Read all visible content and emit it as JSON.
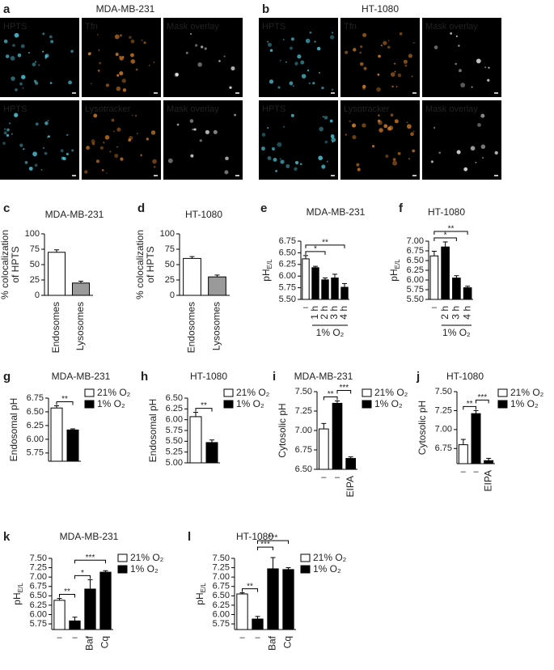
{
  "figure": {
    "panels": [
      {
        "label": "a",
        "title": "MDA-MB-231",
        "images": [
          "HPTS",
          "Tfn",
          "Mask overlay",
          "HPTS",
          "Lysotracker",
          "Mask overlay"
        ]
      },
      {
        "label": "b",
        "title": "HT-1080",
        "images": [
          "HPTS",
          "Tfn",
          "Mask overlay",
          "HPTS",
          "Lysotracker",
          "Mask overlay"
        ]
      }
    ]
  },
  "chart_data": [
    {
      "type": "bar",
      "panel": "c",
      "title": "MDA-MB-231",
      "ylabel": [
        "% colocalization",
        "of HPTS"
      ],
      "categories": [
        "Endosomes",
        "Lysosomes"
      ],
      "values": [
        70,
        20
      ],
      "errors": [
        4,
        3
      ],
      "colors": [
        "#ffffff",
        "#9a9a9a"
      ],
      "ylim": [
        0,
        100
      ],
      "yticks": [
        0,
        25,
        50,
        75,
        100
      ]
    },
    {
      "type": "bar",
      "panel": "d",
      "title": "HT-1080",
      "ylabel": [
        "% colocalization",
        "of HPTS"
      ],
      "categories": [
        "Endosomes",
        "Lysosomes"
      ],
      "values": [
        60,
        30
      ],
      "errors": [
        3,
        3
      ],
      "colors": [
        "#ffffff",
        "#9a9a9a"
      ],
      "ylim": [
        0,
        100
      ],
      "yticks": [
        0,
        25,
        50,
        75,
        100
      ]
    },
    {
      "type": "bar",
      "panel": "e",
      "title": "MDA-MB-231",
      "ylabel": [
        "pH"
      ],
      "ylabel_sub": "E/L",
      "categories": [
        "–",
        "1 h",
        "2 h",
        "3 h",
        "4 h"
      ],
      "values": [
        6.37,
        6.18,
        5.92,
        5.96,
        5.76
      ],
      "errors": [
        0.07,
        0.03,
        0.04,
        0.08,
        0.08
      ],
      "colors": [
        "#ffffff",
        "#000000",
        "#000000",
        "#000000",
        "#000000"
      ],
      "group_label": "1% O₂",
      "annotations": [
        "**",
        "*"
      ],
      "ylim": [
        5.5,
        6.75
      ],
      "yticks": [
        {
          "value": 5.5,
          "label": "5.50"
        },
        5.75,
        {
          "value": 6,
          "label": "6.00"
        },
        6.25,
        {
          "value": 6.5,
          "label": "6.50"
        },
        6.75
      ]
    },
    {
      "type": "bar",
      "panel": "f",
      "title": "HT-1080",
      "ylabel": [
        "pH"
      ],
      "ylabel_sub": "E/L",
      "categories": [
        "–",
        "2 h",
        "3 h",
        "4 h"
      ],
      "values": [
        6.62,
        6.85,
        6.05,
        5.8
      ],
      "errors": [
        0.12,
        0.13,
        0.06,
        0.04
      ],
      "colors": [
        "#ffffff",
        "#000000",
        "#000000",
        "#000000"
      ],
      "group_label": "1% O₂",
      "annotations": [
        "*",
        "**"
      ],
      "ylim": [
        5.5,
        7.0
      ],
      "yticks": [
        {
          "value": 5.5,
          "label": "5.50"
        },
        5.75,
        {
          "value": 6,
          "label": "6.00"
        },
        6.25,
        {
          "value": 6.5,
          "label": "6.50"
        },
        6.75,
        {
          "value": 7,
          "label": "7.00"
        }
      ]
    },
    {
      "type": "bar",
      "panel": "g",
      "title": "MDA-MB-231",
      "ylabel": [
        "Endosomal pH"
      ],
      "categories": [
        null,
        null
      ],
      "values": [
        6.57,
        6.17
      ],
      "errors": [
        0.04,
        0.02
      ],
      "colors": [
        "#ffffff",
        "#000000"
      ],
      "legend": [
        {
          "name": "21% O₂",
          "color": "#ffffff"
        },
        {
          "name": "1% O₂",
          "color": "#000000"
        }
      ],
      "annotations": [
        "**"
      ],
      "ylim": [
        5.6,
        6.75
      ],
      "yticks": [
        5.75,
        {
          "value": 6,
          "label": "6.00"
        },
        6.25,
        {
          "value": 6.5,
          "label": "6.50"
        },
        6.75
      ]
    },
    {
      "type": "bar",
      "panel": "h",
      "title": "HT-1080",
      "ylabel": [
        "Endosomal pH"
      ],
      "categories": [
        null,
        null
      ],
      "values": [
        6.07,
        5.47
      ],
      "errors": [
        0.1,
        0.06
      ],
      "colors": [
        "#ffffff",
        "#000000"
      ],
      "legend": [
        {
          "name": "21% O₂",
          "color": "#ffffff"
        },
        {
          "name": "1% O₂",
          "color": "#000000"
        }
      ],
      "annotations": [
        "**"
      ],
      "ylim": [
        5.0,
        6.5
      ],
      "yticks": [
        {
          "value": 5,
          "label": "5.00"
        },
        5.25,
        {
          "value": 5.5,
          "label": "5.50"
        },
        5.75,
        {
          "value": 6,
          "label": "6.00"
        },
        6.25,
        {
          "value": 6.5,
          "label": "6.50"
        }
      ]
    },
    {
      "type": "bar",
      "panel": "i",
      "title": "MDA-MB-231",
      "ylabel": [
        "Cytosolic pH"
      ],
      "categories": [
        "–",
        "–",
        "EIPA"
      ],
      "values": [
        7.02,
        7.35,
        6.64
      ],
      "errors": [
        0.07,
        0.03,
        0.02
      ],
      "colors": [
        "#ffffff",
        "#000000",
        "#000000"
      ],
      "legend": [
        {
          "name": "21% O₂",
          "color": "#ffffff"
        },
        {
          "name": "1% O₂",
          "color": "#000000"
        }
      ],
      "annotations": [
        "**",
        "***"
      ],
      "ylim": [
        6.5,
        7.5
      ],
      "yticks": [
        {
          "value": 6.5,
          "label": "6.50"
        },
        6.75,
        {
          "value": 7,
          "label": "7.00"
        },
        7.25,
        {
          "value": 7.5,
          "label": "7.50"
        }
      ]
    },
    {
      "type": "bar",
      "panel": "j",
      "title": "HT-1080",
      "ylabel": [
        "Cytosolic pH"
      ],
      "categories": [
        "–",
        "–",
        "EIPA"
      ],
      "values": [
        6.8,
        7.21,
        6.59
      ],
      "errors": [
        0.07,
        0.04,
        0.03
      ],
      "colors": [
        "#ffffff",
        "#000000",
        "#000000"
      ],
      "legend": [
        {
          "name": "21% O₂",
          "color": "#ffffff"
        },
        {
          "name": "1% O₂",
          "color": "#000000"
        }
      ],
      "annotations": [
        "**",
        "***"
      ],
      "ylim": [
        6.55,
        7.5
      ],
      "yticks": [
        6.75,
        {
          "value": 7,
          "label": "7.00"
        },
        7.25,
        {
          "value": 7.5,
          "label": "7.50"
        }
      ]
    },
    {
      "type": "bar",
      "panel": "k",
      "title": "MDA-MB-231",
      "ylabel": [
        "pH"
      ],
      "ylabel_sub": "E/L",
      "categories": [
        "–",
        "–",
        "Baf",
        "Cq"
      ],
      "values": [
        6.38,
        5.83,
        6.68,
        7.13
      ],
      "errors": [
        0.05,
        0.1,
        0.25,
        0.04
      ],
      "colors": [
        "#ffffff",
        "#000000",
        "#000000",
        "#000000"
      ],
      "legend": [
        {
          "name": "21% O₂",
          "color": "#ffffff"
        },
        {
          "name": "1% O₂",
          "color": "#000000"
        }
      ],
      "annotations": [
        "**",
        "*",
        "***"
      ],
      "ylim": [
        5.6,
        7.5
      ],
      "yticks": [
        5.75,
        {
          "value": 6,
          "label": "6.00"
        },
        6.25,
        {
          "value": 6.5,
          "label": "6.50"
        },
        6.75,
        {
          "value": 7,
          "label": "7.00"
        },
        7.25,
        {
          "value": 7.5,
          "label": "7.50"
        }
      ]
    },
    {
      "type": "bar",
      "panel": "l",
      "title": "HT-1080",
      "ylabel": [
        "pH"
      ],
      "ylabel_sub": "E/L",
      "categories": [
        "–",
        "–",
        "Baf",
        "Cq"
      ],
      "values": [
        6.55,
        5.88,
        7.22,
        7.2
      ],
      "errors": [
        0.03,
        0.07,
        0.3,
        0.05
      ],
      "colors": [
        "#ffffff",
        "#000000",
        "#000000",
        "#000000"
      ],
      "legend": [
        {
          "name": "21% O₂",
          "color": "#ffffff"
        },
        {
          "name": "1% O₂",
          "color": "#000000"
        }
      ],
      "annotations": [
        "**",
        "***",
        "***"
      ],
      "ylim": [
        5.6,
        7.5
      ],
      "yticks": [
        5.75,
        {
          "value": 6,
          "label": "6.00"
        },
        6.25,
        {
          "value": 6.5,
          "label": "6.50"
        },
        6.75,
        {
          "value": 7,
          "label": "7.00"
        },
        7.25,
        {
          "value": 7.5,
          "label": "7.50"
        }
      ]
    }
  ]
}
